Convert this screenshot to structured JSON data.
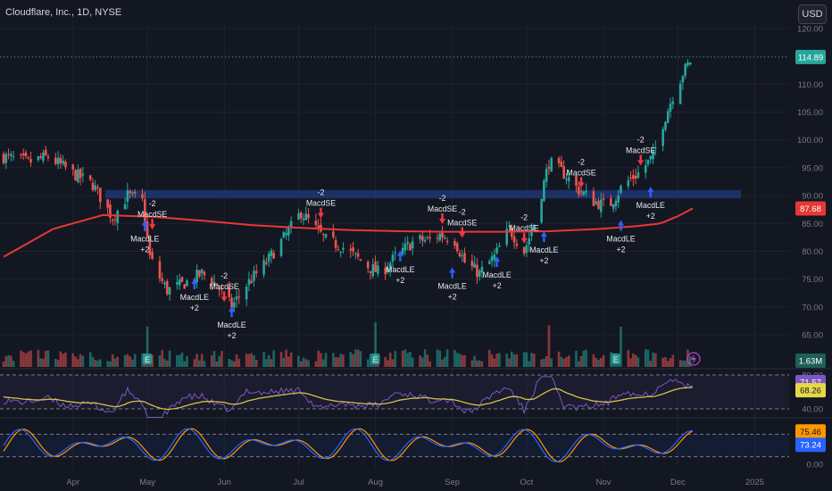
{
  "header": {
    "title": "Cloudflare, Inc., 1D, NYSE",
    "currency": "USD"
  },
  "colors": {
    "bg": "#131722",
    "up": "#26a69a",
    "down": "#ef5350",
    "ma": "#e53935",
    "zone": "#1f3a7a",
    "rsi": "#7e57c2",
    "rsi_ma": "#d4c24a",
    "stoch_k": "#2962ff",
    "stoch_d": "#ff9800",
    "signal_up": "#2962ff",
    "signal_down": "#f23645"
  },
  "price_tags": {
    "last": "114.89",
    "ma": "87.68",
    "volume": "1.63M",
    "rsi": "71.57",
    "rsi_ma": "68.26",
    "stoch_d": "75.46",
    "stoch_k": "73.24"
  },
  "chart_data": {
    "type": "candlestick",
    "symbol": "Cloudflare, Inc.",
    "interval": "1D",
    "exchange": "NYSE",
    "y_ticks": [
      "120.00",
      "115.00",
      "110.00",
      "105.00",
      "100.00",
      "95.00",
      "90.00",
      "85.00",
      "80.00",
      "75.00",
      "70.00",
      "65.00"
    ],
    "ylim": [
      63,
      121
    ],
    "x_ticks": [
      {
        "label": "Apr",
        "day": 28
      },
      {
        "label": "May",
        "day": 58
      },
      {
        "label": "Jun",
        "day": 89
      },
      {
        "label": "Jul",
        "day": 119
      },
      {
        "label": "Aug",
        "day": 150
      },
      {
        "label": "Sep",
        "day": 181
      },
      {
        "label": "Oct",
        "day": 211
      },
      {
        "label": "Nov",
        "day": 242
      },
      {
        "label": "Dec",
        "day": 272
      },
      {
        "label": "2025",
        "day": 303
      }
    ],
    "price_path": [
      [
        0,
        97
      ],
      [
        10,
        96
      ],
      [
        18,
        97
      ],
      [
        28,
        94
      ],
      [
        36,
        92
      ],
      [
        44,
        86
      ],
      [
        50,
        90
      ],
      [
        56,
        89
      ],
      [
        59,
        79
      ],
      [
        62,
        76
      ],
      [
        66,
        73
      ],
      [
        72,
        74
      ],
      [
        80,
        76
      ],
      [
        86,
        74
      ],
      [
        92,
        70
      ],
      [
        98,
        74
      ],
      [
        106,
        78
      ],
      [
        114,
        83
      ],
      [
        120,
        87
      ],
      [
        124,
        85
      ],
      [
        130,
        82
      ],
      [
        136,
        81
      ],
      [
        142,
        79
      ],
      [
        148,
        77
      ],
      [
        152,
        76
      ],
      [
        158,
        79
      ],
      [
        166,
        82
      ],
      [
        172,
        82
      ],
      [
        176,
        83
      ],
      [
        182,
        82
      ],
      [
        186,
        78
      ],
      [
        192,
        76
      ],
      [
        198,
        79
      ],
      [
        204,
        84
      ],
      [
        210,
        80
      ],
      [
        214,
        85
      ],
      [
        220,
        96
      ],
      [
        226,
        94
      ],
      [
        232,
        91
      ],
      [
        238,
        89
      ],
      [
        244,
        88
      ],
      [
        250,
        92
      ],
      [
        256,
        94
      ],
      [
        262,
        97
      ],
      [
        266,
        103
      ],
      [
        270,
        108
      ],
      [
        274,
        112
      ],
      [
        278,
        114.9
      ]
    ],
    "moving_average": {
      "name": "MA",
      "last": 87.68,
      "points": [
        [
          0,
          79
        ],
        [
          20,
          84
        ],
        [
          40,
          86.5
        ],
        [
          60,
          86.2
        ],
        [
          80,
          85.5
        ],
        [
          100,
          84.7
        ],
        [
          120,
          84.2
        ],
        [
          140,
          83.8
        ],
        [
          160,
          83.6
        ],
        [
          180,
          83.5
        ],
        [
          200,
          83.5
        ],
        [
          220,
          83.6
        ],
        [
          240,
          84
        ],
        [
          255,
          84.5
        ],
        [
          265,
          85
        ],
        [
          272,
          86.3
        ],
        [
          278,
          87.7
        ]
      ]
    },
    "zone": {
      "from": 89.5,
      "to": 91
    },
    "last_close": 114.89,
    "signals": [
      {
        "type": "long",
        "day": 57,
        "price": 84,
        "label": "MacdLE",
        "value": "+2"
      },
      {
        "type": "short",
        "day": 60,
        "price": 85.5,
        "label": "MacdSE",
        "value": "-2"
      },
      {
        "type": "long",
        "day": 77,
        "price": 73.5,
        "label": "MacdLE",
        "value": "+2"
      },
      {
        "type": "short",
        "day": 89,
        "price": 72.5,
        "label": "MacdSE",
        "value": "-2"
      },
      {
        "type": "long",
        "day": 92,
        "price": 68.5,
        "label": "MacdLE",
        "value": "+2"
      },
      {
        "type": "short",
        "day": 128,
        "price": 87.5,
        "label": "MacdSE",
        "value": "-2"
      },
      {
        "type": "long",
        "day": 160,
        "price": 78.5,
        "label": "MacdLE",
        "value": "+2"
      },
      {
        "type": "short",
        "day": 177,
        "price": 86.5,
        "label": "MacdSE",
        "value": "-2"
      },
      {
        "type": "long",
        "day": 181,
        "price": 75.5,
        "label": "MacdLE",
        "value": "+2"
      },
      {
        "type": "short",
        "day": 185,
        "price": 84,
        "label": "MacdSE",
        "value": "-2"
      },
      {
        "type": "long",
        "day": 199,
        "price": 77.5,
        "label": "MacdLE",
        "value": "+2"
      },
      {
        "type": "short",
        "day": 210,
        "price": 83,
        "label": "MacdSE",
        "value": "-2"
      },
      {
        "type": "long",
        "day": 218,
        "price": 82,
        "label": "MacdLE",
        "value": "+2"
      },
      {
        "type": "short",
        "day": 233,
        "price": 93,
        "label": "MacdSE",
        "value": "-2"
      },
      {
        "type": "long",
        "day": 249,
        "price": 84,
        "label": "MacdLE",
        "value": "+2"
      },
      {
        "type": "short",
        "day": 257,
        "price": 97,
        "label": "MacdSE",
        "value": "-2"
      },
      {
        "type": "long",
        "day": 261,
        "price": 90,
        "label": "MacdLE",
        "value": "+2"
      }
    ],
    "earnings_days": [
      58,
      150,
      247
    ],
    "volume": {
      "last": "1.63M",
      "spike_days": [
        58,
        89,
        150,
        220,
        249
      ]
    },
    "rsi": {
      "levels": [
        "80.00",
        "40.00"
      ],
      "value": 71.57,
      "ma": 68.26
    },
    "stochastic": {
      "levels": [
        "0.00"
      ],
      "k": 73.24,
      "d": 75.46
    }
  }
}
